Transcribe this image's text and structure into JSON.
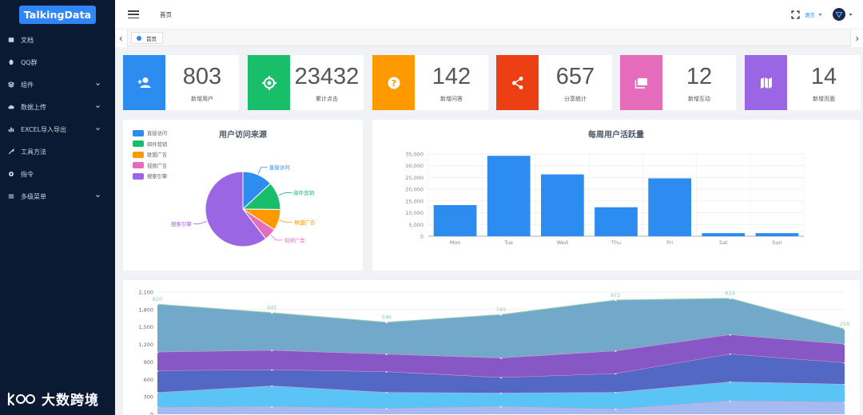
{
  "brand": {
    "logo_text": "TalkingData"
  },
  "sidebar": {
    "items": [
      {
        "label": "文档",
        "icon": "document-icon",
        "has_submenu": false
      },
      {
        "label": "QQ群",
        "icon": "qq-icon",
        "has_submenu": false
      },
      {
        "label": "组件",
        "icon": "component-icon",
        "has_submenu": true
      },
      {
        "label": "数据上传",
        "icon": "cloud-upload-icon",
        "has_submenu": true
      },
      {
        "label": "EXCEL导入导出",
        "icon": "excel-chart-icon",
        "has_submenu": true
      },
      {
        "label": "工具方法",
        "icon": "tool-icon",
        "has_submenu": false
      },
      {
        "label": "指令",
        "icon": "directive-icon",
        "has_submenu": false
      },
      {
        "label": "多级菜单",
        "icon": "multilevel-menu-icon",
        "has_submenu": true
      }
    ]
  },
  "watermark": {
    "text": "大数跨境"
  },
  "header": {
    "breadcrumb": "首页",
    "language_label": "语言"
  },
  "tabs": [
    {
      "label": "首页",
      "active": true
    }
  ],
  "stats": [
    {
      "value": "803",
      "label": "新增用户",
      "color": "#2d8cf0",
      "icon": "add-user-icon"
    },
    {
      "value": "23432",
      "label": "累计点击",
      "color": "#19be6b",
      "icon": "crosshair-icon"
    },
    {
      "value": "142",
      "label": "新增问答",
      "color": "#ff9900",
      "icon": "question-icon"
    },
    {
      "value": "657",
      "label": "分享统计",
      "color": "#ed3f14",
      "icon": "share-icon"
    },
    {
      "value": "12",
      "label": "新增互动",
      "color": "#e46cbb",
      "icon": "chat-icon"
    },
    {
      "value": "14",
      "label": "新增页面",
      "color": "#9a66e4",
      "icon": "map-icon"
    }
  ],
  "chart_data": [
    {
      "type": "pie",
      "title": "用户访问来源",
      "legend_position": "top-left",
      "slices": [
        {
          "name": "直接访问",
          "value": 335,
          "color": "#2d8cf0"
        },
        {
          "name": "邮件营销",
          "value": 310,
          "color": "#19be6b"
        },
        {
          "name": "联盟广告",
          "value": 234,
          "color": "#ff9900"
        },
        {
          "name": "视频广告",
          "value": 135,
          "color": "#e46cbb"
        },
        {
          "name": "搜索引擎",
          "value": 1548,
          "color": "#9a66e4"
        }
      ]
    },
    {
      "type": "bar",
      "title": "每周用户活跃量",
      "categories": [
        "Mon",
        "Tue",
        "Wed",
        "Thu",
        "Fri",
        "Sat",
        "Sun"
      ],
      "values": [
        13253,
        34235,
        26321,
        12340,
        24643,
        1322,
        1324
      ],
      "ylim": [
        0,
        35000
      ],
      "yticks": [
        "35,000",
        "30,000",
        "25,000",
        "20,000",
        "15,000",
        "10,000",
        "5,000",
        "0"
      ],
      "color": "#2d8cf0",
      "grid": true
    },
    {
      "type": "area",
      "stacked": true,
      "ylim": [
        0,
        2100
      ],
      "yticks": [
        "2,100",
        "1,800",
        "1,500",
        "1,200",
        "900",
        "600",
        "300",
        "0"
      ],
      "top_labels": [
        "820",
        "645",
        "546",
        "745",
        "872",
        "624",
        "258"
      ],
      "series": [
        {
          "values": [
            120,
            132,
            101,
            134,
            90,
            230,
            210
          ],
          "color": "#9fb6f0"
        },
        {
          "values": [
            257,
            358,
            278,
            234,
            290,
            330,
            310
          ],
          "color": "#52c1f5"
        },
        {
          "values": [
            375,
            280,
            356,
            267,
            322,
            480,
            368
          ],
          "color": "#4a5fc1"
        },
        {
          "values": [
            320,
            332,
            301,
            334,
            390,
            330,
            320
          ],
          "color": "#7f4ec2"
        },
        {
          "values": [
            820,
            645,
            546,
            745,
            872,
            624,
            258
          ],
          "color": "#6aa4c8"
        }
      ]
    }
  ]
}
